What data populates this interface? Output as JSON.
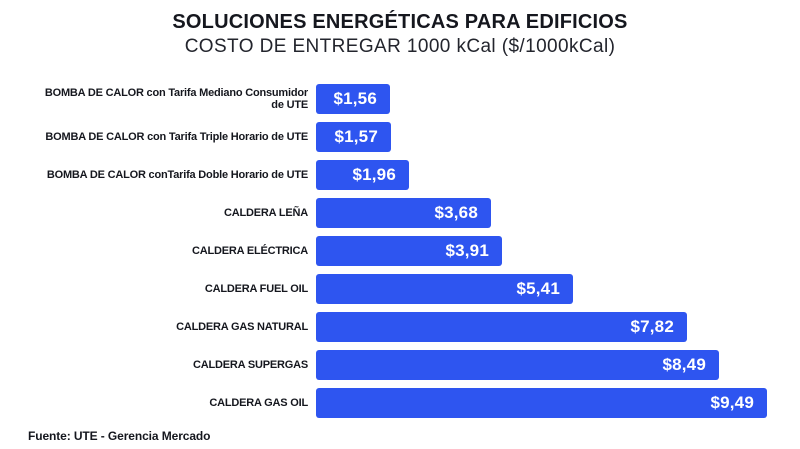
{
  "title": "SOLUCIONES ENERGÉTICAS PARA EDIFICIOS",
  "subtitle": "COSTO DE ENTREGAR 1000 kCal ($/1000kCal)",
  "source": "Fuente: UTE - Gerencia Mercado",
  "colors": {
    "bar": "#2e55f0",
    "title_text": "#15171e",
    "value_text": "#ffffff",
    "background": "#ffffff"
  },
  "chart_data": {
    "type": "bar",
    "orientation": "horizontal",
    "title": "SOLUCIONES ENERGÉTICAS PARA EDIFICIOS",
    "subtitle": "COSTO DE ENTREGAR 1000 kCal ($/1000kCal)",
    "xlabel": "",
    "ylabel": "",
    "xlim": [
      0,
      10
    ],
    "grid": false,
    "legend": false,
    "bar_color": "#2e55f0",
    "categories": [
      "BOMBA DE CALOR con Tarifa Mediano Consumidor de UTE",
      "BOMBA DE CALOR con Tarifa Triple Horario de UTE",
      "BOMBA DE CALOR conTarifa Doble Horario de UTE",
      "CALDERA LEÑA",
      "CALDERA ELÉCTRICA",
      "CALDERA FUEL OIL",
      "CALDERA GAS NATURAL",
      "CALDERA SUPERGAS",
      "CALDERA GAS OIL"
    ],
    "category_display_lines": [
      [
        "BOMBA DE CALOR con Tarifa Mediano Consumidor",
        "de UTE"
      ],
      [
        "BOMBA DE CALOR con Tarifa Triple Horario de UTE"
      ],
      [
        "BOMBA DE CALOR conTarifa Doble Horario de UTE"
      ],
      [
        "CALDERA LEÑA"
      ],
      [
        "CALDERA ELÉCTRICA"
      ],
      [
        "CALDERA FUEL OIL"
      ],
      [
        "CALDERA GAS NATURAL"
      ],
      [
        "CALDERA SUPERGAS"
      ],
      [
        "CALDERA GAS OIL"
      ]
    ],
    "values": [
      1.56,
      1.57,
      1.96,
      3.68,
      3.91,
      5.41,
      7.82,
      8.49,
      9.49
    ],
    "value_labels": [
      "$1,56",
      "$1,57",
      "$1,96",
      "$3,68",
      "$3,91",
      "$5,41",
      "$7,82",
      "$8,49",
      "$9,49"
    ],
    "source": "Fuente: UTE - Gerencia Mercado"
  }
}
